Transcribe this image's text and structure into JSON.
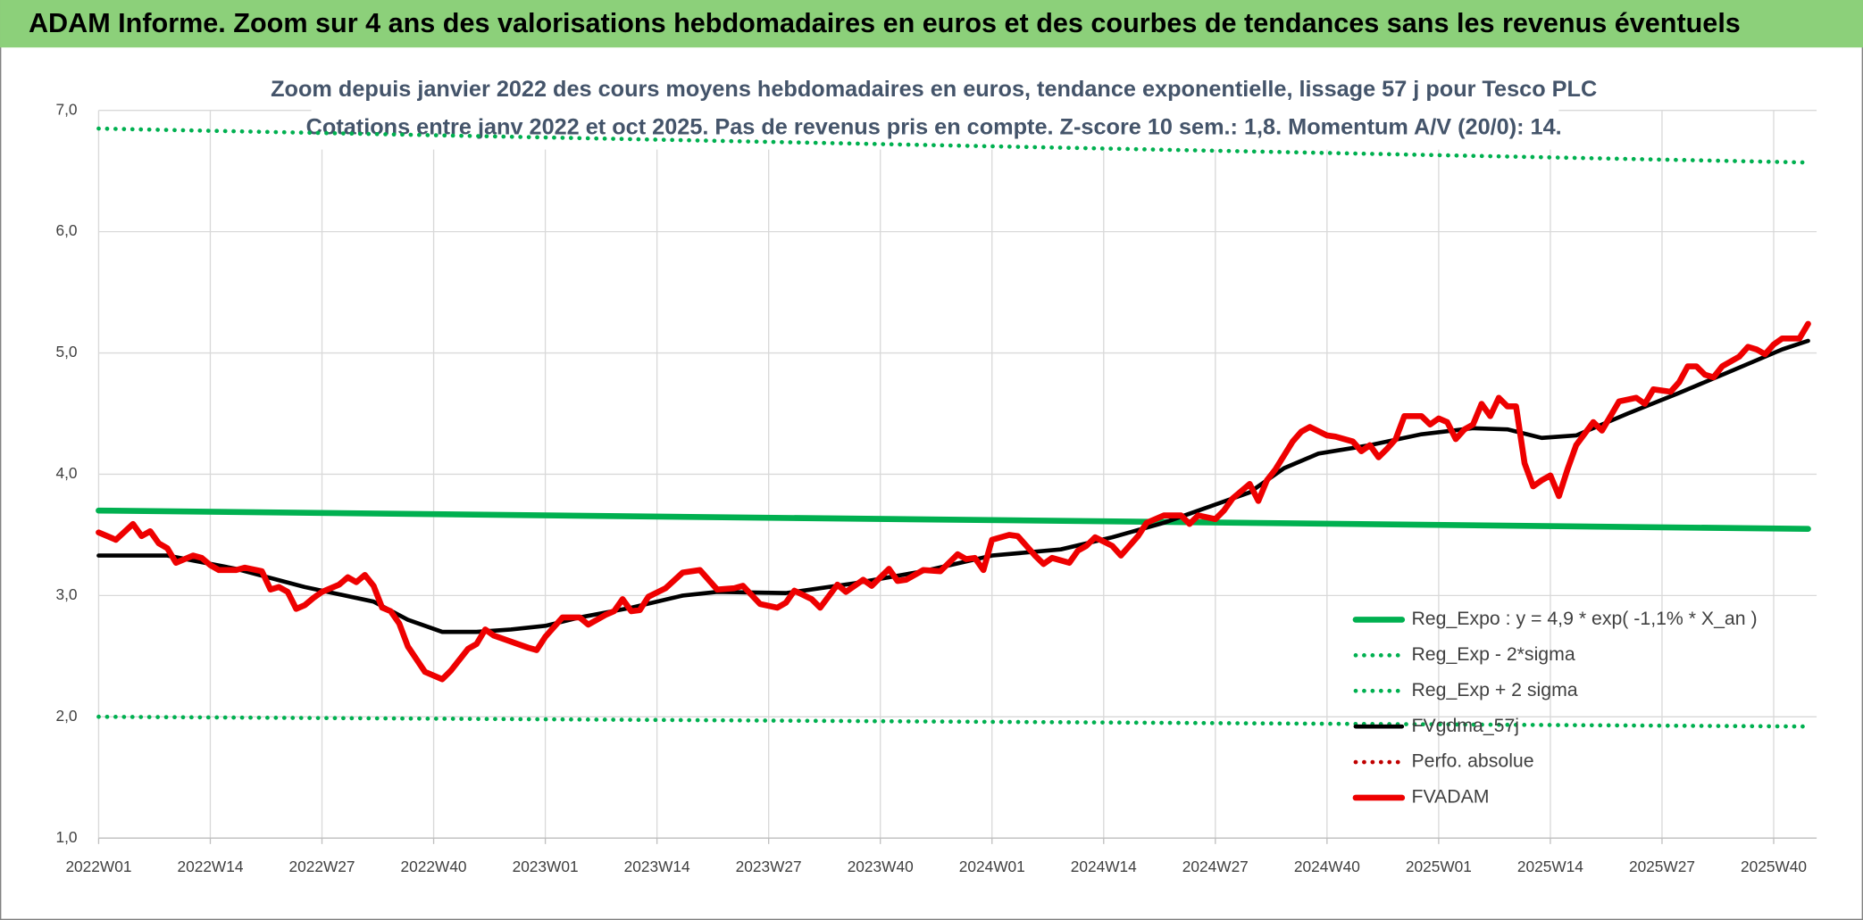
{
  "chart_data": {
    "type": "line",
    "title": "ADAM Informe. Zoom sur 4 ans des valorisations hebdomadaires en euros et des courbes de tendances sans les revenus éventuels",
    "subtitle": [
      "Zoom depuis janvier 2022 des cours moyens hebdomadaires en euros, tendance exponentielle, lissage 57 j pour Tesco PLC",
      "Cotations entre janv 2022 et oct 2025. Pas de revenus pris en compte. Z-score 10 sem.: 1,8. Momentum A/V (20/0): 14."
    ],
    "xlim": [
      0,
      200
    ],
    "xticks": [
      {
        "value": 0,
        "label": "2022W01"
      },
      {
        "value": 13,
        "label": "2022W14"
      },
      {
        "value": 26,
        "label": "2022W27"
      },
      {
        "value": 39,
        "label": "2022W40"
      },
      {
        "value": 52,
        "label": "2023W01"
      },
      {
        "value": 65,
        "label": "2023W14"
      },
      {
        "value": 78,
        "label": "2023W27"
      },
      {
        "value": 91,
        "label": "2023W40"
      },
      {
        "value": 104,
        "label": "2024W01"
      },
      {
        "value": 117,
        "label": "2024W14"
      },
      {
        "value": 130,
        "label": "2024W27"
      },
      {
        "value": 143,
        "label": "2024W40"
      },
      {
        "value": 156,
        "label": "2025W01"
      },
      {
        "value": 169,
        "label": "2025W14"
      },
      {
        "value": 182,
        "label": "2025W27"
      },
      {
        "value": 195,
        "label": "2025W40"
      }
    ],
    "ylim": [
      1,
      7
    ],
    "yticks": [
      {
        "value": 1,
        "label": "1,0"
      },
      {
        "value": 2,
        "label": "2,0"
      },
      {
        "value": 3,
        "label": "3,0"
      },
      {
        "value": 4,
        "label": "4,0"
      },
      {
        "value": 5,
        "label": "5,0"
      },
      {
        "value": 6,
        "label": "6,0"
      },
      {
        "value": 7,
        "label": "7,0"
      }
    ],
    "grid": true,
    "legend": "bottom-right",
    "series": [
      {
        "name": "Reg_Expo : y = 4,9 * exp( -1,1% *  X_an )",
        "color": "#00b050",
        "style": "solid",
        "x": [
          0,
          199
        ],
        "values": [
          3.7,
          3.55
        ]
      },
      {
        "name": "Reg_Exp - 2*sigma",
        "color": "#00b050",
        "style": "dotted",
        "x": [
          0,
          199
        ],
        "values": [
          2.0,
          1.92
        ]
      },
      {
        "name": "Reg_Exp + 2 sigma",
        "color": "#00b050",
        "style": "dotted",
        "x": [
          0,
          199
        ],
        "values": [
          6.85,
          6.57
        ]
      },
      {
        "name": "FVgdma_57j",
        "color": "#000000",
        "style": "solid",
        "x": [
          0,
          8,
          16,
          24,
          32,
          36,
          40,
          44,
          48,
          52,
          56,
          62,
          68,
          72,
          80,
          88,
          96,
          104,
          112,
          118,
          124,
          130,
          134,
          138,
          142,
          148,
          154,
          160,
          164,
          168,
          172,
          178,
          184,
          190,
          196,
          199
        ],
        "values": [
          3.33,
          3.33,
          3.22,
          3.07,
          2.95,
          2.8,
          2.7,
          2.7,
          2.72,
          2.75,
          2.82,
          2.9,
          3.0,
          3.03,
          3.02,
          3.1,
          3.2,
          3.33,
          3.38,
          3.48,
          3.6,
          3.75,
          3.85,
          4.05,
          4.17,
          4.24,
          4.33,
          4.38,
          4.37,
          4.3,
          4.32,
          4.5,
          4.67,
          4.85,
          5.03,
          5.1
        ]
      },
      {
        "name": "Perfo. absolue",
        "color": "#c00000",
        "style": "dotted",
        "x": [],
        "values": []
      },
      {
        "name": "FVADAM",
        "color": "#ee0000",
        "style": "solid",
        "x": [
          0,
          2,
          4,
          5,
          6,
          7,
          8,
          9,
          11,
          12,
          13,
          14,
          16,
          17,
          19,
          20,
          21,
          22,
          23,
          24,
          25,
          26,
          28,
          29,
          30,
          31,
          32,
          33,
          34,
          35,
          36,
          38,
          40,
          41,
          43,
          44,
          45,
          46,
          48,
          50,
          51,
          52,
          54,
          56,
          57,
          59,
          60,
          61,
          62,
          63,
          64,
          66,
          68,
          70,
          72,
          74,
          75,
          77,
          79,
          80,
          81,
          83,
          84,
          86,
          87,
          89,
          90,
          92,
          93,
          94,
          96,
          98,
          100,
          101,
          102,
          103,
          104,
          106,
          107,
          109,
          110,
          111,
          113,
          114,
          115,
          116,
          118,
          119,
          121,
          122,
          124,
          126,
          127,
          128,
          130,
          131,
          132,
          134,
          135,
          136,
          137,
          139,
          140,
          141,
          143,
          144,
          146,
          147,
          148,
          149,
          150,
          151,
          152,
          154,
          155,
          156,
          157,
          158,
          159,
          160,
          161,
          162,
          163,
          164,
          165,
          166,
          167,
          168,
          169,
          170,
          171,
          172,
          174,
          175,
          176,
          177,
          179,
          180,
          181,
          183,
          184,
          185,
          186,
          187,
          188,
          189,
          191,
          192,
          193,
          194,
          195,
          196,
          197,
          198,
          199
        ],
        "values": [
          3.52,
          3.46,
          3.59,
          3.49,
          3.53,
          3.43,
          3.39,
          3.27,
          3.33,
          3.31,
          3.25,
          3.21,
          3.21,
          3.23,
          3.2,
          3.05,
          3.07,
          3.03,
          2.89,
          2.92,
          2.98,
          3.03,
          3.09,
          3.15,
          3.11,
          3.17,
          3.08,
          2.9,
          2.87,
          2.77,
          2.58,
          2.37,
          2.31,
          2.38,
          2.56,
          2.6,
          2.72,
          2.67,
          2.62,
          2.57,
          2.55,
          2.66,
          2.82,
          2.82,
          2.76,
          2.84,
          2.87,
          2.97,
          2.87,
          2.88,
          2.99,
          3.06,
          3.19,
          3.21,
          3.05,
          3.06,
          3.08,
          2.93,
          2.9,
          2.94,
          3.04,
          2.97,
          2.9,
          3.09,
          3.03,
          3.13,
          3.08,
          3.22,
          3.12,
          3.13,
          3.21,
          3.2,
          3.34,
          3.3,
          3.31,
          3.21,
          3.46,
          3.5,
          3.49,
          3.33,
          3.26,
          3.31,
          3.27,
          3.37,
          3.41,
          3.48,
          3.41,
          3.33,
          3.49,
          3.6,
          3.66,
          3.66,
          3.59,
          3.66,
          3.63,
          3.7,
          3.8,
          3.92,
          3.78,
          3.95,
          4.04,
          4.27,
          4.35,
          4.39,
          4.32,
          4.31,
          4.27,
          4.19,
          4.24,
          4.14,
          4.21,
          4.29,
          4.48,
          4.48,
          4.41,
          4.46,
          4.43,
          4.29,
          4.37,
          4.41,
          4.58,
          4.48,
          4.63,
          4.56,
          4.56,
          4.09,
          3.9,
          3.95,
          3.99,
          3.82,
          4.04,
          4.24,
          4.43,
          4.36,
          4.48,
          4.6,
          4.63,
          4.58,
          4.7,
          4.68,
          4.76,
          4.89,
          4.89,
          4.82,
          4.8,
          4.89,
          4.97,
          5.05,
          5.03,
          4.99,
          5.07,
          5.12,
          5.12,
          5.12,
          5.24
        ]
      }
    ]
  }
}
